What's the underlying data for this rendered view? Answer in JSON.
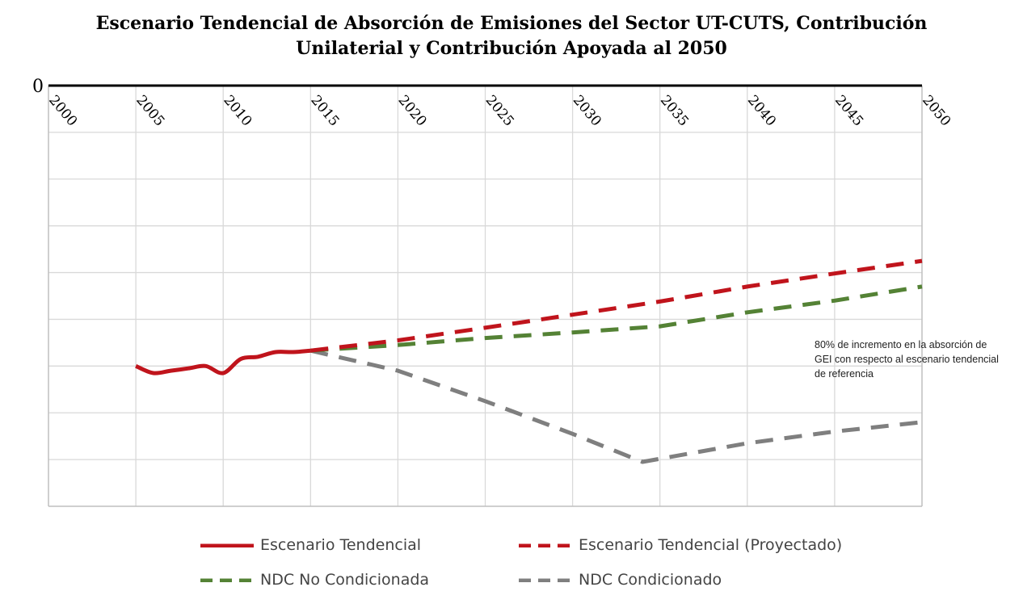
{
  "title_line1": "Escenario Tendencial de Absorción de Emisiones  del Sector UT-CUTS, Contribución",
  "title_line2": "Unilaterial y Contribución  Apoyada  al 2050",
  "annotation": "80% de incremento en la absorción de GEI  con respecto al escenario tendencial de referencia",
  "chart_data": {
    "type": "line",
    "title": "Escenario Tendencial de Absorción de Emisiones  del Sector UT-CUTS, Contribución Unilaterial y Contribución  Apoyada  al 2050",
    "xlabel": "",
    "ylabel": "",
    "x_ticks": [
      "2000",
      "2005",
      "2010",
      "2015",
      "2020",
      "2025",
      "2030",
      "2035",
      "2040",
      "2045",
      "2050"
    ],
    "y_tick_labels": [
      "0"
    ],
    "xlim": [
      2000,
      2050
    ],
    "ylim": [
      -9,
      0
    ],
    "grid": true,
    "legend_position": "bottom",
    "series": [
      {
        "name": "Escenario Tendencial",
        "color": "#c0141c",
        "style": "solid",
        "points": [
          [
            2005,
            -6.0
          ],
          [
            2006,
            -6.15
          ],
          [
            2007,
            -6.1
          ],
          [
            2008,
            -6.05
          ],
          [
            2009,
            -6.0
          ],
          [
            2010,
            -6.15
          ],
          [
            2011,
            -5.85
          ],
          [
            2012,
            -5.8
          ],
          [
            2013,
            -5.7
          ],
          [
            2014,
            -5.7
          ],
          [
            2015,
            -5.67
          ]
        ]
      },
      {
        "name": "Escenario Tendencial (Proyectado)",
        "color": "#c0141c",
        "style": "dashed",
        "points": [
          [
            2015,
            -5.67
          ],
          [
            2020,
            -5.45
          ],
          [
            2025,
            -5.18
          ],
          [
            2030,
            -4.9
          ],
          [
            2035,
            -4.62
          ],
          [
            2040,
            -4.3
          ],
          [
            2045,
            -4.02
          ],
          [
            2050,
            -3.75
          ]
        ]
      },
      {
        "name": "NDC No Condicionada",
        "color": "#548235",
        "style": "dashed",
        "points": [
          [
            2015,
            -5.67
          ],
          [
            2020,
            -5.55
          ],
          [
            2025,
            -5.4
          ],
          [
            2030,
            -5.28
          ],
          [
            2035,
            -5.15
          ],
          [
            2040,
            -4.85
          ],
          [
            2045,
            -4.6
          ],
          [
            2050,
            -4.3
          ]
        ]
      },
      {
        "name": "NDC Condicionado",
        "color": "#7f7f7f",
        "style": "dashed",
        "points": [
          [
            2015,
            -5.67
          ],
          [
            2020,
            -6.1
          ],
          [
            2025,
            -6.75
          ],
          [
            2030,
            -7.45
          ],
          [
            2034,
            -8.05
          ],
          [
            2040,
            -7.65
          ],
          [
            2045,
            -7.4
          ],
          [
            2050,
            -7.2
          ]
        ]
      }
    ]
  }
}
